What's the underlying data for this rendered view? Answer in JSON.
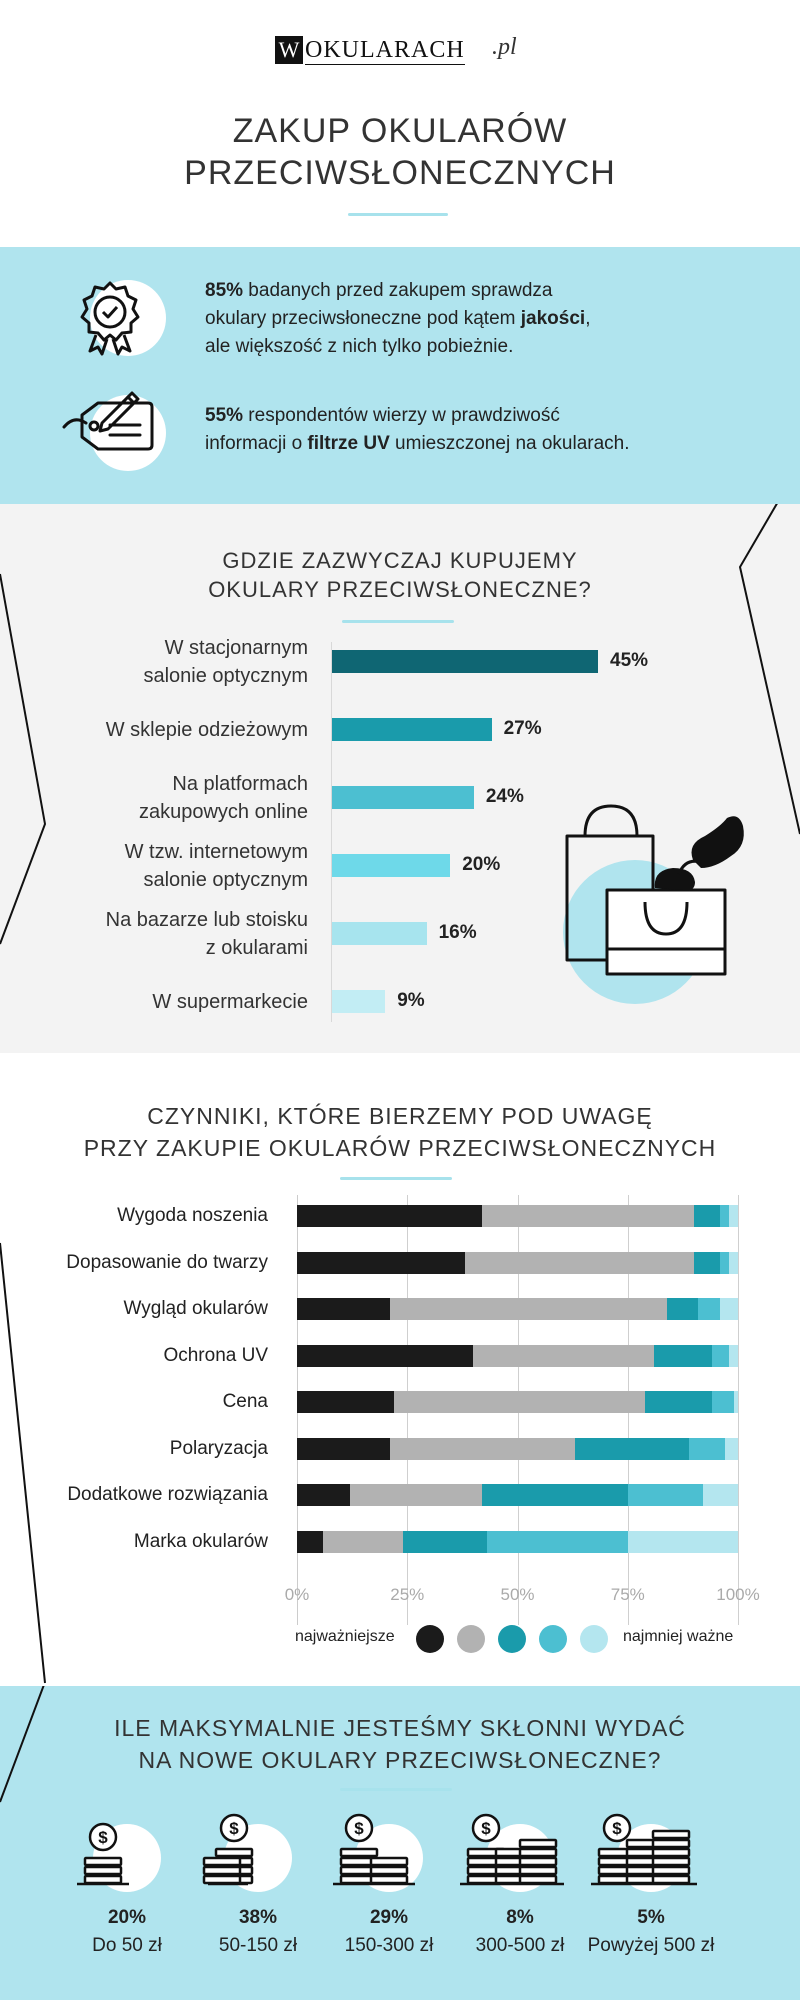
{
  "brand": {
    "logo_letter": "W",
    "logo_text": "OKULARACH",
    "logo_suffix": ".pl"
  },
  "header": {
    "title_line1": "ZAKUP OKULARÓW",
    "title_line2": "PRZECIWSŁONECZNYCH"
  },
  "facts": [
    {
      "icon": "quality-badge-icon",
      "parts": [
        {
          "t": "85%",
          "b": true
        },
        {
          "t": " badanych przed zakupem sprawdza",
          "b": false
        },
        {
          "br": true
        },
        {
          "t": "okulary przeciwsłoneczne pod kątem ",
          "b": false
        },
        {
          "t": "jakości",
          "b": true
        },
        {
          "t": ",",
          "b": false
        },
        {
          "br": true
        },
        {
          "t": "ale większość z nich tylko pobieżnie.",
          "b": false
        }
      ]
    },
    {
      "icon": "tag-pencil-icon",
      "parts": [
        {
          "t": "55%",
          "b": true
        },
        {
          "t": " respondentów wierzy w prawdziwość",
          "b": false
        },
        {
          "br": true
        },
        {
          "t": "informacji o ",
          "b": false
        },
        {
          "t": "filtrze UV",
          "b": true
        },
        {
          "t": " umieszczonej na okularach.",
          "b": false
        }
      ]
    }
  ],
  "chart_data": [
    {
      "type": "bar",
      "orientation": "horizontal",
      "title": "GDZIE ZAZWYCZAJ KUPUJEMY OKULARY PRZECIWSŁONECZNE?",
      "title_line1": "GDZIE ZAZWYCZAJ KUPUJEMY",
      "title_line2": "OKULARY PRZECIWSŁONECZNE?",
      "categories": [
        [
          "W stacjonarnym",
          "salonie optycznym"
        ],
        [
          "W sklepie odzieżowym"
        ],
        [
          "Na platformach",
          "zakupowych online"
        ],
        [
          "W tzw. internetowym",
          "salonie optycznym"
        ],
        [
          "Na bazarze lub stoisku",
          "z okularami"
        ],
        [
          "W supermarkecie"
        ]
      ],
      "values": [
        45,
        27,
        24,
        20,
        16,
        9
      ],
      "value_labels": [
        "45%",
        "27%",
        "24%",
        "20%",
        "16%",
        "9%"
      ],
      "colors": [
        "#0f6673",
        "#1a9bab",
        "#4cbfd1",
        "#6ed9e9",
        "#a7e4ee",
        "#c2edf4"
      ],
      "xlim": [
        0,
        45
      ]
    },
    {
      "type": "bar",
      "orientation": "horizontal",
      "stacked": true,
      "title": "CZYNNIKI, KTÓRE BIERZEMY POD UWAGĘ PRZY ZAKUPIE OKULARÓW PRZECIWSŁONECZNYCH",
      "title_line1": "CZYNNIKI, KTÓRE BIERZEMY POD UWAGĘ",
      "title_line2": "PRZY ZAKUPIE OKULARÓW PRZECIWSŁONECZNYCH",
      "categories": [
        "Wygoda noszenia",
        "Dopasowanie do twarzy",
        "Wygląd okularów",
        "Ochrona UV",
        "Cena",
        "Polaryzacja",
        "Dodatkowe rozwiązania",
        "Marka okularów"
      ],
      "series": [
        {
          "values": [
            42,
            38,
            21,
            40,
            22,
            21,
            12,
            6
          ],
          "color": "#1b1b1b"
        },
        {
          "values": [
            48,
            52,
            63,
            41,
            57,
            42,
            30,
            18
          ],
          "color": "#b2b2b2"
        },
        {
          "values": [
            6,
            6,
            7,
            13,
            15,
            26,
            33,
            19
          ],
          "color": "#1a9bab"
        },
        {
          "values": [
            2,
            2,
            5,
            4,
            5,
            8,
            17,
            32
          ],
          "color": "#4cbfd1"
        },
        {
          "values": [
            2,
            2,
            4,
            2,
            1,
            3,
            8,
            25
          ],
          "color": "#b4e6ef"
        }
      ],
      "xlim": [
        0,
        100
      ],
      "ticks": [
        "0%",
        "25%",
        "50%",
        "75%",
        "100%"
      ],
      "legend_left": "najważniejsze",
      "legend_right": "najmniej ważne",
      "grid": true
    }
  ],
  "spend": {
    "title_line1": "ILE MAKSYMALNIE JESTEŚMY SKŁONNI WYDAĆ",
    "title_line2": "NA NOWE OKULARY PRZECIWSŁONECZNE?",
    "items": [
      {
        "pct": "20%",
        "label": "Do 50 zł",
        "coins": 1
      },
      {
        "pct": "38%",
        "label": "50-150 zł",
        "coins": 2
      },
      {
        "pct": "29%",
        "label": "150-300 zł",
        "coins": 3
      },
      {
        "pct": "8%",
        "label": "300-500 zł",
        "coins": 4
      },
      {
        "pct": "5%",
        "label": "Powyżej 500 zł",
        "coins": 5
      }
    ]
  }
}
